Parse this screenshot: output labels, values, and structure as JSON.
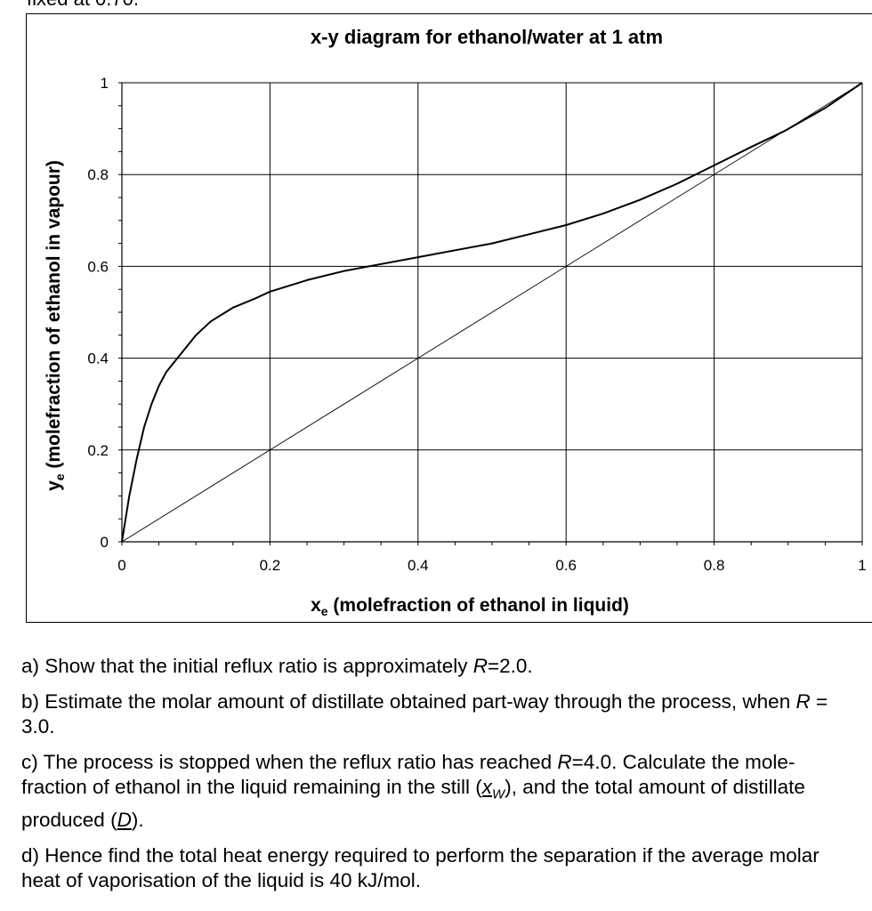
{
  "page_top_fragment": "fixed at 0.70.",
  "chart_data": {
    "type": "line",
    "title": "x-y diagram for ethanol/water at 1 atm",
    "xlabel": "xe (molefraction of ethanol in liquid)",
    "ylabel": "ye (molefraction of ethanol in vapour)",
    "xlim": [
      0,
      1
    ],
    "ylim": [
      0,
      1
    ],
    "x_ticks": [
      "0",
      "0.2",
      "0.4",
      "0.6",
      "0.8",
      "1"
    ],
    "y_ticks": [
      "0",
      "0.2",
      "0.4",
      "0.6",
      "0.8",
      "1"
    ],
    "grid": true,
    "series": [
      {
        "role": "equilibrium curve",
        "x": [
          0,
          0.01,
          0.02,
          0.03,
          0.04,
          0.05,
          0.06,
          0.07,
          0.08,
          0.1,
          0.12,
          0.15,
          0.18,
          0.2,
          0.25,
          0.3,
          0.35,
          0.4,
          0.45,
          0.5,
          0.55,
          0.6,
          0.65,
          0.7,
          0.75,
          0.8,
          0.85,
          0.894,
          0.95,
          1.0
        ],
        "y": [
          0,
          0.1,
          0.18,
          0.25,
          0.3,
          0.34,
          0.37,
          0.39,
          0.41,
          0.45,
          0.48,
          0.51,
          0.53,
          0.545,
          0.57,
          0.59,
          0.605,
          0.62,
          0.635,
          0.65,
          0.67,
          0.69,
          0.715,
          0.745,
          0.78,
          0.82,
          0.86,
          0.894,
          0.945,
          1.0
        ]
      },
      {
        "role": "diagonal y = x",
        "x": [
          0,
          1
        ],
        "y": [
          0,
          1
        ]
      }
    ]
  },
  "questions": {
    "a": {
      "prefix": "a) Show that the initial reflux ratio is approximately ",
      "var": "R",
      "suffix": "=2.0."
    },
    "b": {
      "prefix": "b) Estimate the molar amount of distillate obtained part-way through the process, when ",
      "var": "R",
      "suffix": " = 3.0."
    },
    "c": {
      "part1": "c) The process is stopped when the reflux ratio has reached ",
      "var": "R",
      "part2": "=4.0. Calculate the mole-fraction of ethanol in the liquid remaining in the still (",
      "xw": "x",
      "xw_sub": "W",
      "part3": "), and the total amount of distillate produced (",
      "d": "D",
      "part4": ")."
    },
    "d": {
      "text": "d) Hence find the total heat energy required to perform the separation if the average molar heat of vaporisation of the liquid is 40 kJ/mol."
    }
  }
}
